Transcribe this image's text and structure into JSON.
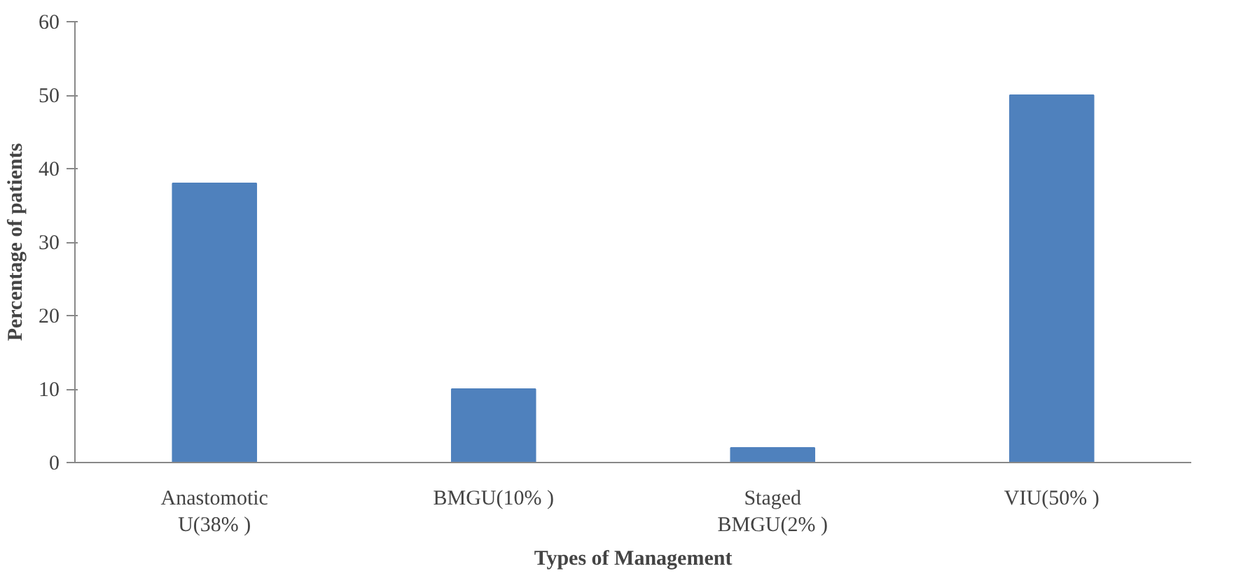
{
  "chart_data": {
    "type": "bar",
    "xlabel": "Types of Management",
    "ylabel": "Percentage of patients",
    "categories": [
      "Anastomotic\nU(38% )",
      "BMGU(10% )",
      "Staged\nBMGU(2% )",
      "VIU(50% )"
    ],
    "values": [
      38,
      10,
      2,
      50
    ],
    "color": "#4f81bd",
    "ylim": [
      0,
      60
    ],
    "yticks": [
      0,
      10,
      20,
      30,
      40,
      50,
      60
    ],
    "grid": false
  }
}
